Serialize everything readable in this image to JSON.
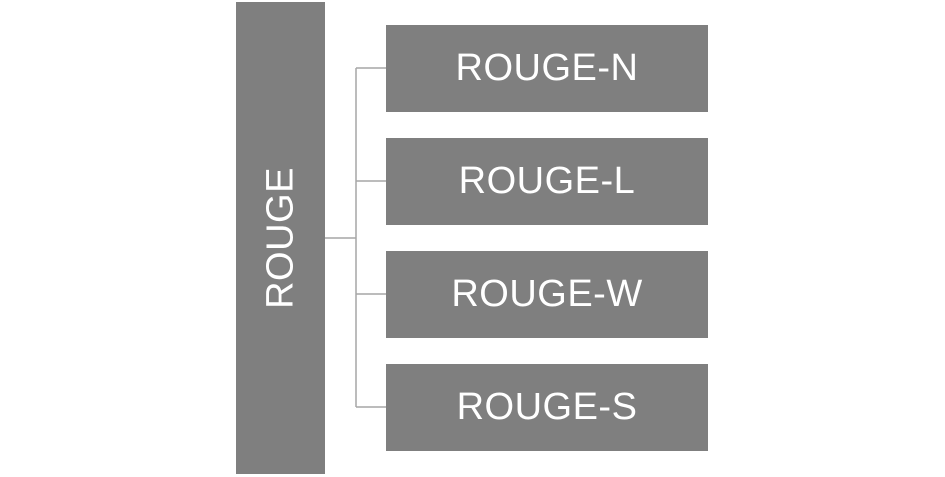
{
  "diagram": {
    "root": {
      "label": "ROUGE"
    },
    "children": [
      {
        "label": "ROUGE-N"
      },
      {
        "label": "ROUGE-L"
      },
      {
        "label": "ROUGE-W"
      },
      {
        "label": "ROUGE-S"
      }
    ],
    "colors": {
      "box_fill": "#7f7f7f",
      "text": "#ffffff",
      "connector": "#a6a6a6"
    }
  }
}
